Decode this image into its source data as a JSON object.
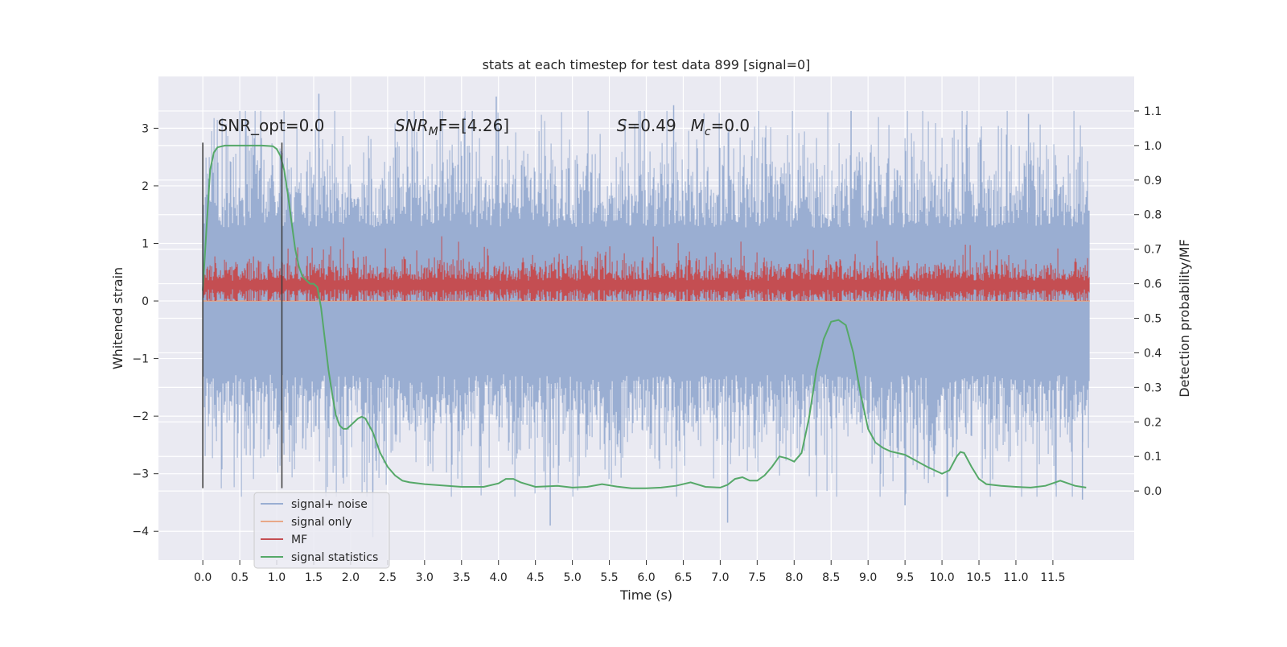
{
  "chart_data": {
    "type": "line",
    "title": "stats at each timestep for test data 899 [signal=0]",
    "xlabel": "Time (s)",
    "ylabel": "Whitened strain",
    "ylabel_right": "Detection probability/MF",
    "xlim": [
      -0.6,
      12.6
    ],
    "ylim": [
      -4.5,
      3.9
    ],
    "ylim_right": [
      -0.2,
      1.2
    ],
    "x_ticks": [
      "0.0",
      "0.5",
      "1.0",
      "1.5",
      "2.0",
      "2.5",
      "3.0",
      "3.5",
      "4.0",
      "4.5",
      "5.0",
      "5.5",
      "6.0",
      "6.5",
      "7.0",
      "7.5",
      "8.0",
      "8.5",
      "9.0",
      "9.5",
      "10.0",
      "10.5",
      "11.0",
      "11.5"
    ],
    "y_ticks": [
      "3",
      "2",
      "1",
      "0",
      "−1",
      "−2",
      "−3",
      "−4"
    ],
    "y_ticks_right": [
      "1.1",
      "1.0",
      "0.9",
      "0.8",
      "0.7",
      "0.6",
      "0.5",
      "0.4",
      "0.3",
      "0.2",
      "0.1",
      "0.0"
    ],
    "grid": true,
    "legend_position": "lower-left",
    "annotations": {
      "snr_opt": "SNR_opt=0.0",
      "snr_mf_sym": "SNR",
      "snr_mf_sub": "M",
      "snr_mf_rest": "F=[4.26]",
      "s_sym": "S",
      "s_rest": "=0.49",
      "mc_sym": "M",
      "mc_sub": "c",
      "mc_rest": "=0.0"
    },
    "vertical_markers": [
      0.0,
      1.07
    ],
    "series": [
      {
        "name": "signal+ noise",
        "color": "#9aaed2",
        "style": "noise-band",
        "axis": "left",
        "x_range": [
          0.0,
          12.0
        ],
        "envelope_core": [
          -1.5,
          1.5
        ],
        "peaks_max": [
          3.6,
          3.55,
          3.4,
          3.3,
          3.25
        ],
        "peaks_min": [
          -4.1,
          -3.9,
          -3.85,
          -3.55,
          -3.45
        ]
      },
      {
        "name": "signal only",
        "color": "#e8a888",
        "axis": "left",
        "x": [
          0.0,
          12.0
        ],
        "y": [
          0.0,
          0.0
        ]
      },
      {
        "name": "MF",
        "color": "#c44e52",
        "style": "noise-band",
        "axis": "left",
        "x_range": [
          0.0,
          12.0
        ],
        "envelope_core": [
          0.05,
          0.5
        ],
        "peaks_max": [
          0.95,
          0.95,
          0.95,
          0.9
        ],
        "peaks_min": [
          0.0
        ]
      },
      {
        "name": "signal statistics",
        "color": "#55a868",
        "axis": "right",
        "x": [
          0.0,
          0.05,
          0.1,
          0.15,
          0.2,
          0.3,
          0.5,
          0.8,
          0.95,
          1.0,
          1.05,
          1.1,
          1.15,
          1.2,
          1.25,
          1.3,
          1.35,
          1.4,
          1.45,
          1.5,
          1.55,
          1.6,
          1.65,
          1.7,
          1.75,
          1.8,
          1.85,
          1.9,
          1.95,
          2.0,
          2.1,
          2.15,
          2.2,
          2.3,
          2.4,
          2.5,
          2.6,
          2.7,
          2.8,
          3.0,
          3.5,
          3.8,
          4.0,
          4.1,
          4.2,
          4.3,
          4.5,
          4.8,
          5.0,
          5.2,
          5.4,
          5.6,
          5.8,
          6.0,
          6.2,
          6.4,
          6.6,
          6.8,
          7.0,
          7.1,
          7.2,
          7.3,
          7.4,
          7.5,
          7.6,
          7.7,
          7.8,
          7.9,
          8.0,
          8.1,
          8.2,
          8.3,
          8.4,
          8.5,
          8.6,
          8.7,
          8.8,
          8.9,
          9.0,
          9.1,
          9.2,
          9.3,
          9.5,
          9.8,
          10.0,
          10.1,
          10.2,
          10.25,
          10.3,
          10.4,
          10.5,
          10.6,
          10.8,
          11.0,
          11.2,
          11.4,
          11.6,
          11.8,
          11.95
        ],
        "y": [
          0.58,
          0.76,
          0.93,
          0.98,
          0.995,
          1.0,
          1.0,
          1.0,
          0.998,
          0.99,
          0.97,
          0.93,
          0.86,
          0.78,
          0.7,
          0.65,
          0.62,
          0.61,
          0.6,
          0.6,
          0.59,
          0.53,
          0.44,
          0.35,
          0.28,
          0.22,
          0.19,
          0.18,
          0.18,
          0.19,
          0.21,
          0.215,
          0.21,
          0.17,
          0.11,
          0.07,
          0.045,
          0.03,
          0.025,
          0.02,
          0.012,
          0.012,
          0.022,
          0.035,
          0.035,
          0.025,
          0.012,
          0.015,
          0.01,
          0.012,
          0.02,
          0.013,
          0.008,
          0.008,
          0.01,
          0.015,
          0.025,
          0.012,
          0.01,
          0.018,
          0.035,
          0.04,
          0.03,
          0.03,
          0.045,
          0.07,
          0.1,
          0.095,
          0.085,
          0.11,
          0.21,
          0.35,
          0.44,
          0.49,
          0.495,
          0.48,
          0.4,
          0.28,
          0.18,
          0.14,
          0.125,
          0.115,
          0.105,
          0.07,
          0.05,
          0.06,
          0.1,
          0.113,
          0.11,
          0.07,
          0.035,
          0.02,
          0.015,
          0.012,
          0.01,
          0.015,
          0.03,
          0.015,
          0.01
        ]
      }
    ]
  }
}
